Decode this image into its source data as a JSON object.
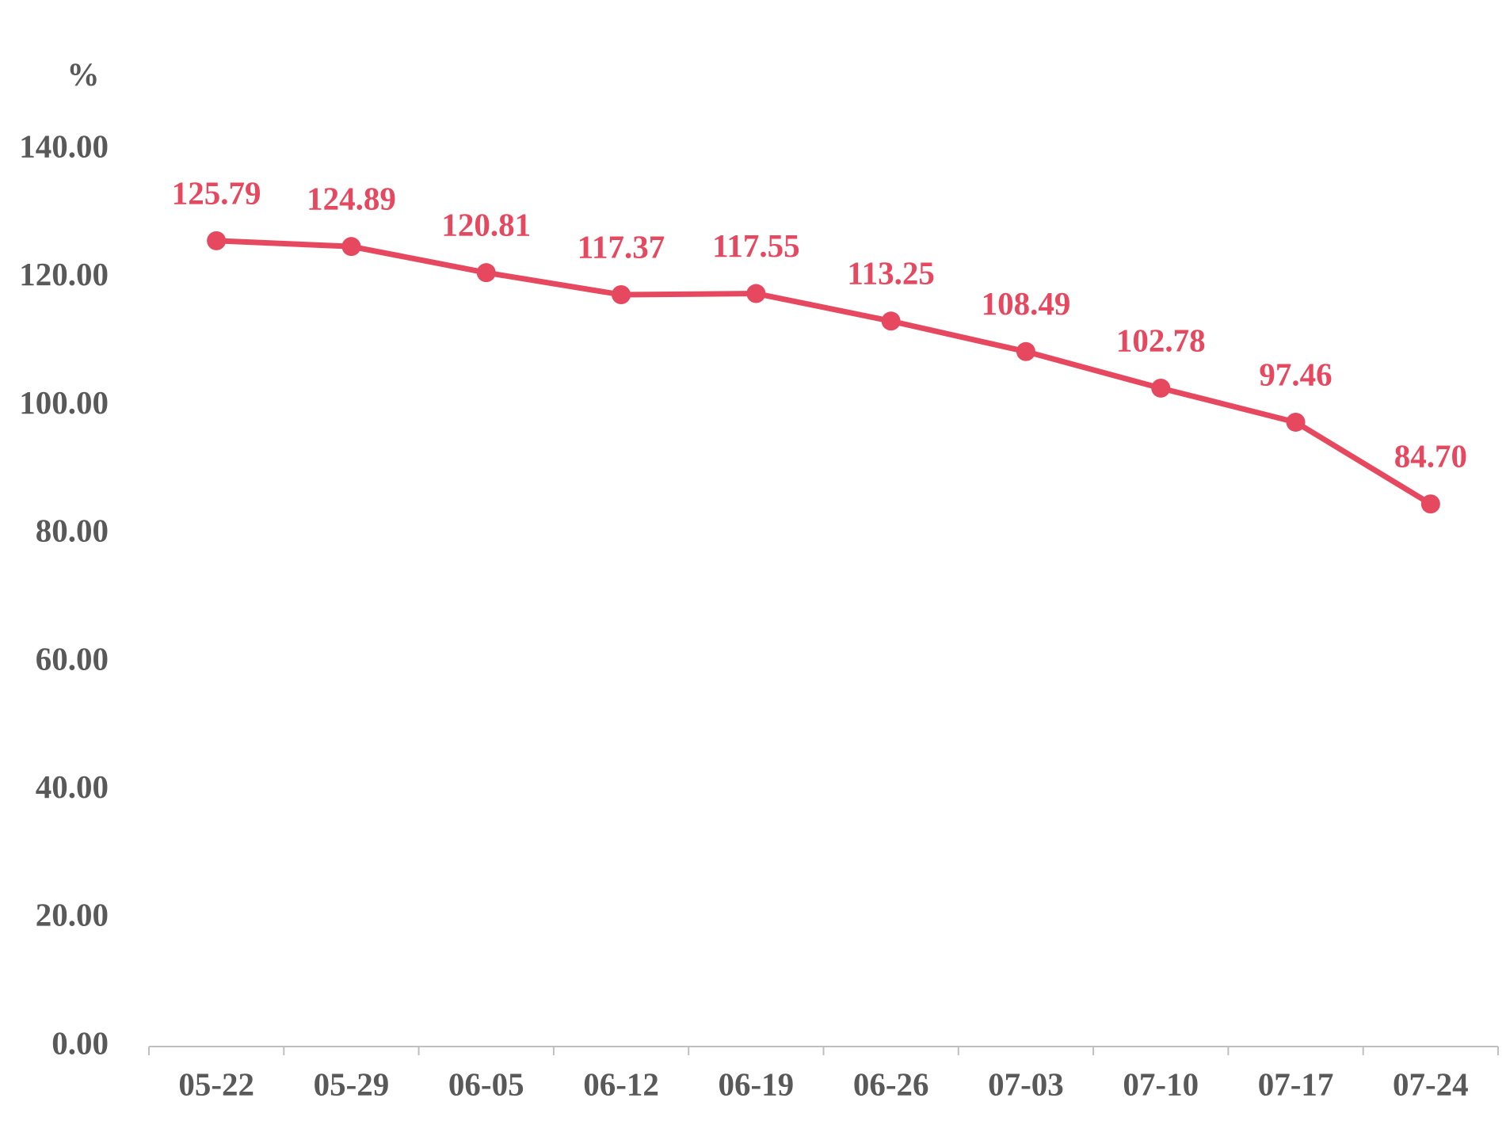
{
  "chart_data": {
    "type": "line",
    "y_unit": "%",
    "categories": [
      "05-22",
      "05-29",
      "06-05",
      "06-12",
      "06-19",
      "06-26",
      "07-03",
      "07-10",
      "07-17",
      "07-24"
    ],
    "values": [
      125.79,
      124.89,
      120.81,
      117.37,
      117.55,
      113.25,
      108.49,
      102.78,
      97.46,
      84.7
    ],
    "value_labels": [
      "125.79",
      "124.89",
      "120.81",
      "117.37",
      "117.55",
      "113.25",
      "108.49",
      "102.78",
      "97.46",
      "84.70"
    ],
    "color": "#e5485f",
    "ylim": [
      0,
      140
    ],
    "yticks": [
      {
        "value": 0,
        "label": "0.00"
      },
      {
        "value": 20,
        "label": "20.00"
      },
      {
        "value": 40,
        "label": "40.00"
      },
      {
        "value": 60,
        "label": "60.00"
      },
      {
        "value": 80,
        "label": "80.00"
      },
      {
        "value": 100,
        "label": "100.00"
      },
      {
        "value": 120,
        "label": "120.00"
      },
      {
        "value": 140,
        "label": "140.00"
      }
    ],
    "grid": false
  }
}
